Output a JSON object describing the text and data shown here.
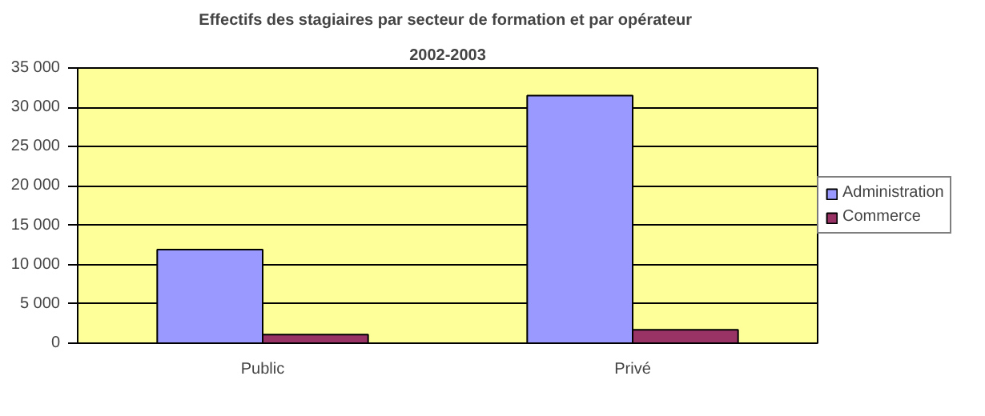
{
  "chart_data": {
    "type": "bar",
    "title": "Effectifs des stagiaires par secteur de formation et  par opérateur",
    "subtitle": "2002-2003",
    "categories": [
      "Public",
      "Privé"
    ],
    "series": [
      {
        "name": "Administration",
        "color": "#9999ff",
        "values": [
          11900,
          31500
        ]
      },
      {
        "name": "Commerce",
        "color": "#993366",
        "values": [
          1100,
          1700
        ]
      }
    ],
    "ylim": [
      0,
      35000
    ],
    "yticks": [
      {
        "value": 0,
        "label": "0"
      },
      {
        "value": 5000,
        "label": "5 000"
      },
      {
        "value": 10000,
        "label": "10 000"
      },
      {
        "value": 15000,
        "label": "15 000"
      },
      {
        "value": 20000,
        "label": "20 000"
      },
      {
        "value": 25000,
        "label": "25 000"
      },
      {
        "value": 30000,
        "label": "30 000"
      },
      {
        "value": 35000,
        "label": "35 000"
      }
    ],
    "grid": "y",
    "legend": "right"
  }
}
